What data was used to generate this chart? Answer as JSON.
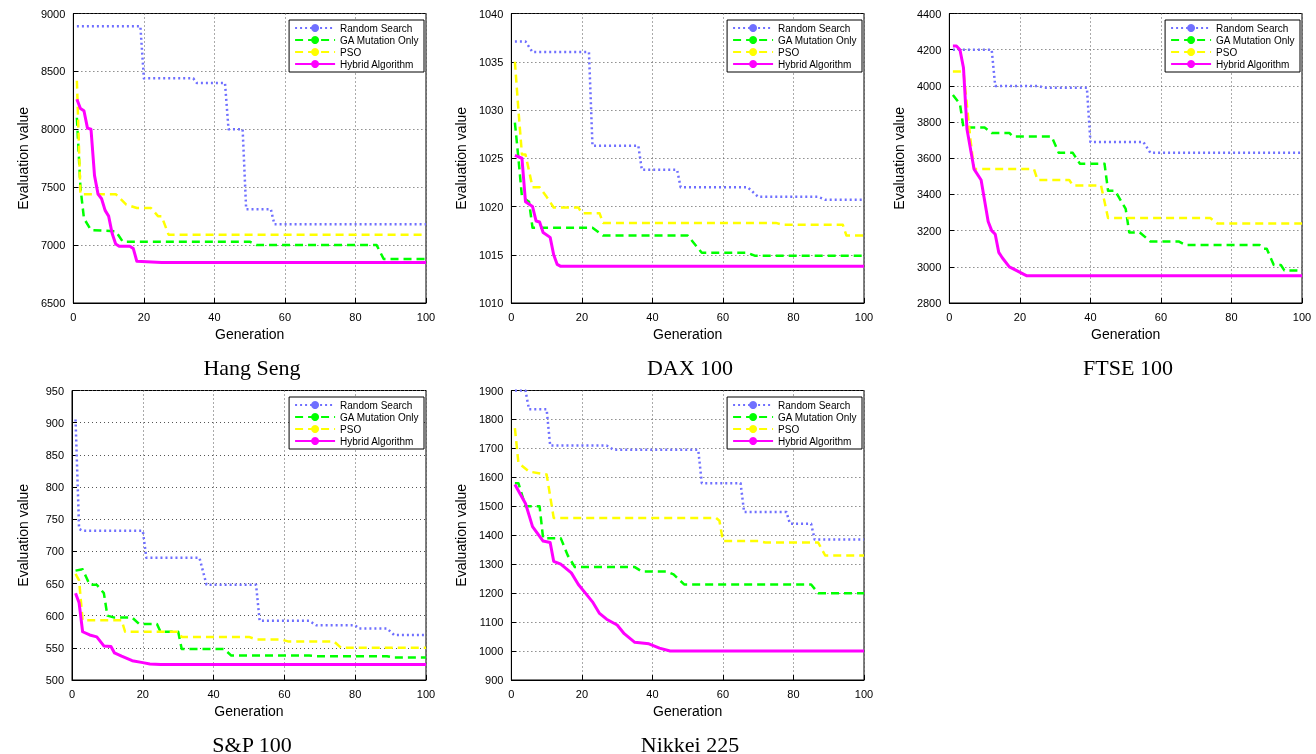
{
  "chart_data": [
    {
      "type": "line",
      "title": "Hang Seng",
      "xlabel": "Generation",
      "ylabel": "Evaluation value",
      "xlim": [
        0,
        100
      ],
      "xticks": [
        0,
        20,
        40,
        60,
        80,
        100
      ],
      "ylim": [
        6500,
        9000
      ],
      "yticks": [
        6500,
        7000,
        7500,
        8000,
        8500,
        9000
      ],
      "grid": true,
      "legend": "top right",
      "marker": "none",
      "series": [
        {
          "name": "Random Search",
          "color": "#6f6fff",
          "line_style": "dotted",
          "x": [
            1,
            19,
            20,
            34,
            35,
            43,
            44,
            48,
            49,
            56,
            57,
            100
          ],
          "values": [
            8890,
            8890,
            8440,
            8440,
            8400,
            8400,
            8000,
            8000,
            7310,
            7310,
            7180,
            7180
          ]
        },
        {
          "name": "GA Mutation Only",
          "color": "#00ff00",
          "line_style": "dashed",
          "x": [
            1,
            2,
            3,
            5,
            12,
            14,
            50,
            52,
            86,
            88,
            100
          ],
          "values": [
            8100,
            7500,
            7230,
            7130,
            7120,
            7030,
            7030,
            7000,
            7000,
            6880,
            6880
          ]
        },
        {
          "name": "PSO",
          "color": "#ffff00",
          "line_style": "dashed",
          "x": [
            1,
            2,
            12,
            15,
            18,
            22,
            24,
            25,
            27,
            100
          ],
          "values": [
            8420,
            7440,
            7440,
            7350,
            7320,
            7320,
            7250,
            7250,
            7090,
            7090
          ]
        },
        {
          "name": "Hybrid Algorithm",
          "color": "#ff00ff",
          "line_style": "solid",
          "x": [
            1,
            2,
            3,
            4,
            5,
            6,
            7,
            8,
            9,
            10,
            11,
            12,
            13,
            16,
            17,
            18,
            25,
            100
          ],
          "values": [
            8260,
            8180,
            8160,
            8010,
            8000,
            7600,
            7440,
            7400,
            7300,
            7250,
            7100,
            7010,
            6990,
            6990,
            6970,
            6860,
            6850,
            6850
          ]
        }
      ]
    },
    {
      "type": "line",
      "title": "DAX 100",
      "xlabel": "Generation",
      "ylabel": "Evaluation value",
      "xlim": [
        0,
        100
      ],
      "xticks": [
        0,
        20,
        40,
        60,
        80,
        100
      ],
      "ylim": [
        1010,
        1040
      ],
      "yticks": [
        1010,
        1015,
        1020,
        1025,
        1030,
        1035,
        1040
      ],
      "grid": true,
      "legend": "top right",
      "marker": "none",
      "series": [
        {
          "name": "Random Search",
          "color": "#6f6fff",
          "line_style": "dotted",
          "x": [
            1,
            4,
            6,
            22,
            23,
            36,
            37,
            47,
            48,
            67,
            70,
            87,
            89,
            100
          ],
          "values": [
            1037.1,
            1037.1,
            1036,
            1036,
            1026.3,
            1026.3,
            1023.8,
            1023.8,
            1022,
            1022,
            1021,
            1021,
            1020.7,
            1020.7
          ]
        },
        {
          "name": "GA Mutation Only",
          "color": "#00ff00",
          "line_style": "dashed",
          "x": [
            1,
            2,
            3,
            5,
            6,
            23,
            26,
            50,
            54,
            67,
            69,
            100
          ],
          "values": [
            1028.7,
            1025,
            1021,
            1020.5,
            1017.8,
            1017.8,
            1017,
            1017,
            1015.2,
            1015.2,
            1014.9,
            1014.9
          ]
        },
        {
          "name": "PSO",
          "color": "#ffff00",
          "line_style": "dashed",
          "x": [
            1,
            2,
            3,
            4,
            6,
            8,
            10,
            12,
            19,
            20,
            25,
            26,
            75,
            77,
            94,
            95,
            100
          ],
          "values": [
            1035,
            1030,
            1025.4,
            1025.4,
            1022,
            1022,
            1021,
            1019.9,
            1019.9,
            1019.3,
            1019.3,
            1018.3,
            1018.3,
            1018.1,
            1018.1,
            1017,
            1017
          ]
        },
        {
          "name": "Hybrid Algorithm",
          "color": "#ff00ff",
          "line_style": "solid",
          "x": [
            1,
            3,
            4,
            6,
            7,
            8,
            9,
            11,
            12,
            13,
            14,
            100
          ],
          "values": [
            1025.3,
            1025,
            1020.5,
            1020,
            1018.5,
            1018.4,
            1017.3,
            1016.8,
            1015,
            1014,
            1013.8,
            1013.8
          ]
        }
      ]
    },
    {
      "type": "line",
      "title": "FTSE 100",
      "xlabel": "Generation",
      "ylabel": "Evaluation value",
      "xlim": [
        0,
        100
      ],
      "xticks": [
        0,
        20,
        40,
        60,
        80,
        100
      ],
      "ylim": [
        2800,
        4400
      ],
      "yticks": [
        2800,
        3000,
        3200,
        3400,
        3600,
        3800,
        4000,
        4200,
        4400
      ],
      "grid": true,
      "legend": "top right",
      "marker": "none",
      "series": [
        {
          "name": "Random Search",
          "color": "#6f6fff",
          "line_style": "dotted",
          "x": [
            1,
            12,
            13,
            25,
            27,
            39,
            40,
            55,
            57,
            100
          ],
          "values": [
            4200,
            4200,
            4000,
            4000,
            3990,
            3990,
            3690,
            3690,
            3630,
            3630
          ]
        },
        {
          "name": "GA Mutation Only",
          "color": "#00ff00",
          "line_style": "dashed",
          "x": [
            1,
            3,
            4,
            10,
            12,
            17,
            18,
            29,
            31,
            35,
            37,
            44,
            45,
            47,
            50,
            51,
            54,
            57,
            65,
            67,
            88,
            89,
            90,
            92,
            94,
            95,
            100
          ],
          "values": [
            3950,
            3900,
            3770,
            3770,
            3740,
            3740,
            3720,
            3720,
            3630,
            3630,
            3570,
            3570,
            3420,
            3420,
            3320,
            3190,
            3190,
            3140,
            3140,
            3120,
            3120,
            3100,
            3100,
            3010,
            3010,
            2980,
            2980
          ]
        },
        {
          "name": "PSO",
          "color": "#ffff00",
          "line_style": "dashed",
          "x": [
            1,
            4,
            6,
            7,
            24,
            25,
            34,
            35,
            43,
            45,
            74,
            76,
            100
          ],
          "values": [
            4080,
            4080,
            3700,
            3540,
            3540,
            3480,
            3480,
            3450,
            3450,
            3270,
            3270,
            3240,
            3240
          ]
        },
        {
          "name": "Hybrid Algorithm",
          "color": "#ff00ff",
          "line_style": "solid",
          "x": [
            1,
            2,
            3,
            4,
            5,
            7,
            9,
            11,
            12,
            13,
            14,
            15,
            17,
            21,
            22,
            100
          ],
          "values": [
            4220,
            4220,
            4200,
            4100,
            3760,
            3540,
            3480,
            3250,
            3200,
            3180,
            3080,
            3050,
            3000,
            2960,
            2950,
            2950
          ]
        }
      ]
    },
    {
      "type": "line",
      "title": "S&P 100",
      "xlabel": "Generation",
      "ylabel": "Evaluation value",
      "xlim": [
        0,
        100
      ],
      "xticks": [
        0,
        20,
        40,
        60,
        80,
        100
      ],
      "ylim": [
        500,
        950
      ],
      "yticks": [
        500,
        550,
        600,
        650,
        700,
        750,
        800,
        850,
        900,
        950
      ],
      "grid": true,
      "legend": "top right",
      "marker": "none",
      "series": [
        {
          "name": "Random Search",
          "color": "#6f6fff",
          "line_style": "dotted",
          "x": [
            1,
            2,
            3,
            20,
            21,
            36,
            38,
            52,
            53,
            67,
            69,
            80,
            81,
            89,
            91,
            100
          ],
          "values": [
            905,
            735,
            732,
            732,
            690,
            690,
            648,
            648,
            592,
            592,
            585,
            585,
            580,
            580,
            570,
            570
          ]
        },
        {
          "name": "GA Mutation Only",
          "color": "#00ff00",
          "line_style": "dashed",
          "x": [
            1,
            3,
            4,
            5,
            7,
            9,
            10,
            12,
            17,
            19,
            24,
            25,
            30,
            31,
            43,
            45,
            67,
            69,
            89,
            91,
            100
          ],
          "values": [
            670,
            672,
            660,
            648,
            648,
            635,
            600,
            597,
            597,
            587,
            587,
            575,
            575,
            548,
            548,
            538,
            538,
            537,
            537,
            535,
            535
          ]
        },
        {
          "name": "PSO",
          "color": "#ffff00",
          "line_style": "dashed",
          "x": [
            1,
            2,
            3,
            14,
            15,
            30,
            31,
            50,
            52,
            59,
            61,
            74,
            76,
            100
          ],
          "values": [
            665,
            655,
            593,
            593,
            575,
            575,
            567,
            567,
            563,
            563,
            560,
            560,
            550,
            550
          ]
        },
        {
          "name": "Hybrid Algorithm",
          "color": "#ff00ff",
          "line_style": "solid",
          "x": [
            1,
            2,
            3,
            5,
            7,
            9,
            11,
            12,
            14,
            17,
            20,
            22,
            25,
            100
          ],
          "values": [
            635,
            620,
            575,
            570,
            567,
            553,
            552,
            542,
            537,
            530,
            527,
            525,
            524,
            524
          ]
        }
      ]
    },
    {
      "type": "line",
      "title": "Nikkei 225",
      "xlabel": "Generation",
      "ylabel": "Evaluation value",
      "xlim": [
        0,
        100
      ],
      "xticks": [
        0,
        20,
        40,
        60,
        80,
        100
      ],
      "ylim": [
        900,
        1900
      ],
      "yticks": [
        900,
        1000,
        1100,
        1200,
        1300,
        1400,
        1500,
        1600,
        1700,
        1800,
        1900
      ],
      "grid": true,
      "legend": "top right",
      "marker": "none",
      "series": [
        {
          "name": "Random Search",
          "color": "#6f6fff",
          "line_style": "dotted",
          "x": [
            1,
            4,
            5,
            10,
            11,
            27,
            29,
            53,
            54,
            65,
            66,
            78,
            79,
            85,
            86,
            100
          ],
          "values": [
            1900,
            1900,
            1835,
            1835,
            1710,
            1710,
            1695,
            1695,
            1580,
            1580,
            1480,
            1480,
            1440,
            1440,
            1385,
            1385
          ]
        },
        {
          "name": "GA Mutation Only",
          "color": "#00ff00",
          "line_style": "dashed",
          "x": [
            1,
            2,
            4,
            8,
            9,
            14,
            16,
            18,
            35,
            37,
            44,
            46,
            49,
            85,
            87,
            100
          ],
          "values": [
            1580,
            1580,
            1500,
            1500,
            1390,
            1390,
            1330,
            1290,
            1290,
            1275,
            1275,
            1265,
            1230,
            1230,
            1200,
            1200
          ]
        },
        {
          "name": "PSO",
          "color": "#ffff00",
          "line_style": "dashed",
          "x": [
            1,
            2,
            5,
            10,
            12,
            58,
            59,
            60,
            70,
            72,
            87,
            89,
            100
          ],
          "values": [
            1770,
            1650,
            1620,
            1610,
            1460,
            1460,
            1450,
            1380,
            1380,
            1375,
            1375,
            1330,
            1330
          ]
        },
        {
          "name": "Hybrid Algorithm",
          "color": "#ff00ff",
          "line_style": "solid",
          "x": [
            1,
            4,
            6,
            9,
            11,
            12,
            14,
            17,
            19,
            21,
            23,
            25,
            27,
            30,
            32,
            35,
            39,
            42,
            45,
            48,
            100
          ],
          "values": [
            1575,
            1510,
            1430,
            1380,
            1375,
            1310,
            1300,
            1270,
            1230,
            1200,
            1170,
            1130,
            1110,
            1090,
            1060,
            1030,
            1025,
            1010,
            1000,
            1000,
            1000
          ]
        }
      ]
    }
  ]
}
